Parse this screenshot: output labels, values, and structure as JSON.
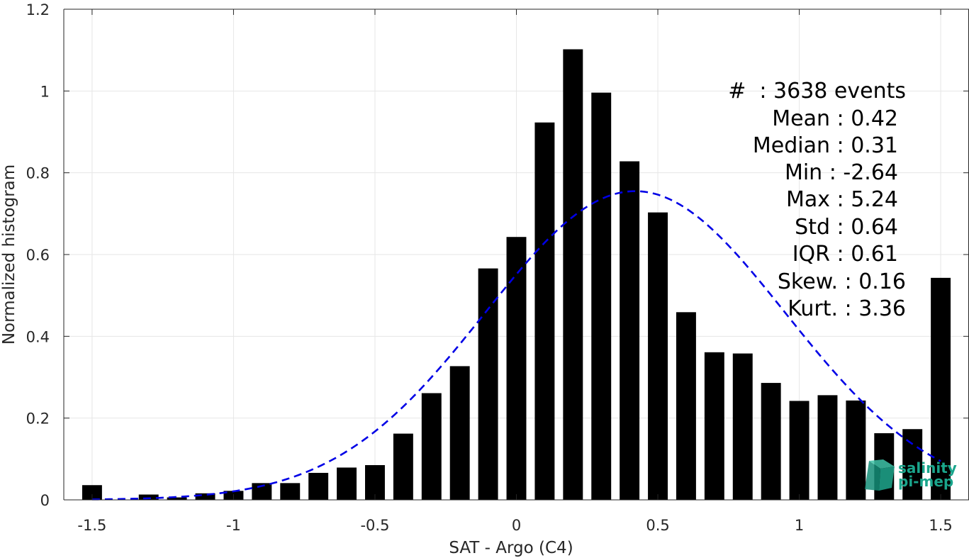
{
  "chart_data": {
    "type": "bar",
    "xlabel": "SAT - Argo (C4)",
    "ylabel": "Normalized histogram",
    "xlim": [
      -1.6,
      1.6
    ],
    "ylim": [
      0,
      1.2
    ],
    "xticks": [
      -1.5,
      -1,
      -0.5,
      0,
      0.5,
      1,
      1.5
    ],
    "yticks": [
      0,
      0.2,
      0.4,
      0.6,
      0.8,
      1,
      1.2
    ],
    "xtick_labels": [
      "-1.5",
      "-1",
      "-0.5",
      "0",
      "0.5",
      "1",
      "1.5"
    ],
    "ytick_labels": [
      "0",
      "0.2",
      "0.4",
      "0.6",
      "0.8",
      "1",
      "1.2"
    ],
    "grid": true,
    "bin_width": 0.1,
    "bars": [
      {
        "x": -1.5,
        "y": 0.036
      },
      {
        "x": -1.4,
        "y": 0.0
      },
      {
        "x": -1.3,
        "y": 0.013
      },
      {
        "x": -1.2,
        "y": 0.006
      },
      {
        "x": -1.1,
        "y": 0.016
      },
      {
        "x": -1.0,
        "y": 0.022
      },
      {
        "x": -0.9,
        "y": 0.041
      },
      {
        "x": -0.8,
        "y": 0.041
      },
      {
        "x": -0.7,
        "y": 0.066
      },
      {
        "x": -0.6,
        "y": 0.079
      },
      {
        "x": -0.5,
        "y": 0.085
      },
      {
        "x": -0.4,
        "y": 0.162
      },
      {
        "x": -0.3,
        "y": 0.261
      },
      {
        "x": -0.2,
        "y": 0.327
      },
      {
        "x": -0.1,
        "y": 0.566
      },
      {
        "x": 0.0,
        "y": 0.643
      },
      {
        "x": 0.1,
        "y": 0.923
      },
      {
        "x": 0.2,
        "y": 1.102
      },
      {
        "x": 0.3,
        "y": 0.996
      },
      {
        "x": 0.4,
        "y": 0.828
      },
      {
        "x": 0.5,
        "y": 0.703
      },
      {
        "x": 0.6,
        "y": 0.459
      },
      {
        "x": 0.7,
        "y": 0.361
      },
      {
        "x": 0.8,
        "y": 0.358
      },
      {
        "x": 0.9,
        "y": 0.286
      },
      {
        "x": 1.0,
        "y": 0.242
      },
      {
        "x": 1.1,
        "y": 0.256
      },
      {
        "x": 1.2,
        "y": 0.243
      },
      {
        "x": 1.3,
        "y": 0.163
      },
      {
        "x": 1.4,
        "y": 0.173
      },
      {
        "x": 1.5,
        "y": 0.543
      }
    ],
    "fit": {
      "style": "dashed",
      "color": "#0000e6",
      "mean": 0.42,
      "std": 0.53,
      "peak": 0.755,
      "x_range": [
        -1.5,
        1.5
      ]
    },
    "bar_color": "#000000"
  },
  "stats": {
    "count": "#  : 3638 events",
    "mean": "Mean : 0.42",
    "median": "Median : 0.31",
    "min": "Min : -2.64",
    "max": "Max : 5.24",
    "std": "Std : 0.64",
    "iqr": "IQR : 0.61",
    "skew": "Skew. : 0.16",
    "kurt": "Kurt. : 3.36"
  },
  "logo": {
    "line1": "salinity",
    "line2": "pi-mep",
    "color": "#1aa58c"
  }
}
